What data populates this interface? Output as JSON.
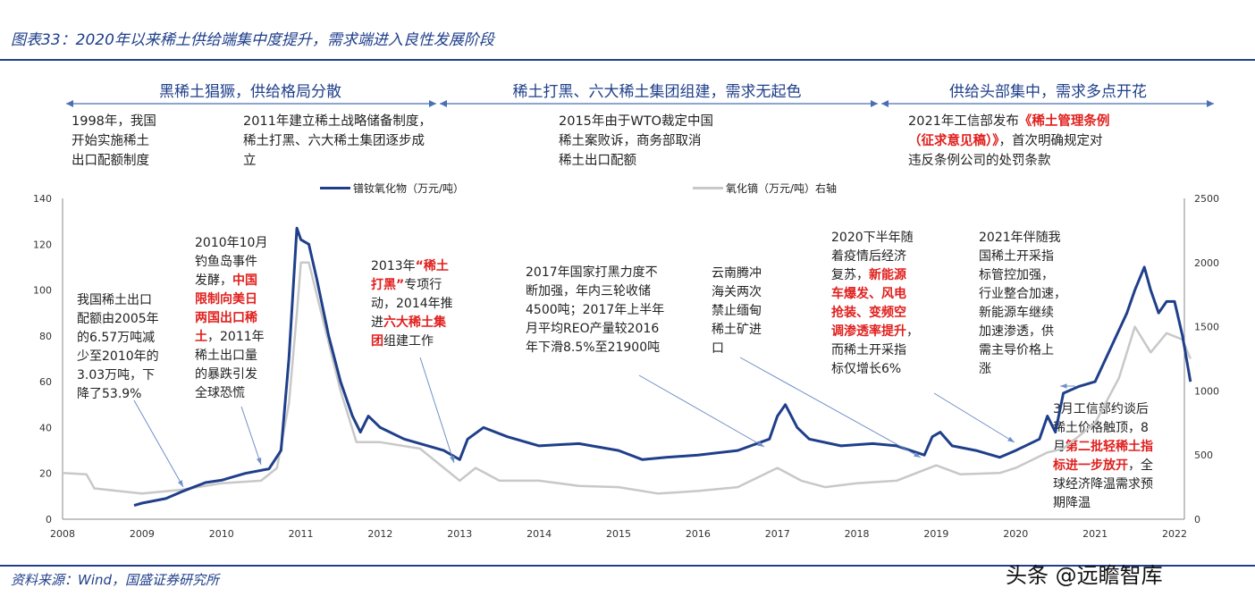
{
  "title": "图表33：2020年以来稀土供给端集中度提升，需求端进入良性发展阶段",
  "phases": [
    "黑稀土猖獗，供给格局分散",
    "稀土打黑、六大稀土集团组建，需求无起色",
    "供给头部集中，需求多点开花"
  ],
  "phase_notes": [
    [
      {
        "t": "1998年，我国\n开始实施稀土\n出口配额制度"
      }
    ],
    [
      {
        "t": "2011年建立稀土战略储备制度，\n稀土打黑、六大稀土集团逐步成\n立"
      }
    ],
    [
      {
        "t": "2015年由于WTO裁定中国\n稀土案败诉，商务部取消\n稀土出口配额"
      }
    ],
    [
      {
        "t": "2021年工信部发布"
      },
      {
        "t": "《稀土管理条例\n（征求意见稿）》",
        "red": true
      },
      {
        "t": "，首次明确规定对\n违反条例公司的处罚条款"
      }
    ]
  ],
  "annotations": [
    [
      {
        "t": "我国稀土出口\n配额由2005年\n的6.57万吨减\n少至2010年的\n3.03万吨，下\n降了53.9%"
      }
    ],
    [
      {
        "t": "2010年10月\n钓鱼岛事件\n发酵，"
      },
      {
        "t": "中国\n限制向美日\n两国出口稀\n土",
        "red": true
      },
      {
        "t": "，2011年\n稀土出口量\n的暴跌引发\n全球恐慌"
      }
    ],
    [
      {
        "t": "2013年"
      },
      {
        "t": "“稀土\n打黑”",
        "red": true
      },
      {
        "t": "专项行\n动，2014年推\n进"
      },
      {
        "t": "六大稀土集\n团",
        "red": true
      },
      {
        "t": "组建工作"
      }
    ],
    [
      {
        "t": "2017年国家打黑力度不\n断加强，年内三轮收储\n4500吨；2017年上半年\n月平均REO产量较2016\n年下滑8.5%至21900吨"
      }
    ],
    [
      {
        "t": "云南腾冲\n海关两次\n禁止缅甸\n稀土矿进\n口"
      }
    ],
    [
      {
        "t": "2020下半年随\n着疫情后经济\n复苏，"
      },
      {
        "t": "新能源\n车爆发、风电\n抢装、变频空\n调渗透率提升",
        "red": true
      },
      {
        "t": "，\n而稀土开采指\n标仅增长6%"
      }
    ],
    [
      {
        "t": "2021年伴随我\n国稀土开采指\n标管控加强，\n行业整合加速，\n新能源车继续\n加速渗透，供\n需主导价格上\n涨"
      }
    ],
    [
      {
        "t": "3月工信部约谈后\n稀土价格触顶，8\n月"
      },
      {
        "t": "第二批轻稀土指\n标进一步放开",
        "red": true
      },
      {
        "t": "，全\n球经济降温需求预\n期降温"
      }
    ]
  ],
  "source": "资料来源：Wind，国盛证券研究所",
  "watermark": "头条 @远瞻智库",
  "chart_data": {
    "type": "line",
    "x_ticks": [
      "2008",
      "2009",
      "2010",
      "2011",
      "2012",
      "2013",
      "2014",
      "2015",
      "2016",
      "2017",
      "2018",
      "2019",
      "2020",
      "2021",
      "2022"
    ],
    "ylim_left": [
      0,
      140
    ],
    "yticks_left": [
      "0",
      "20",
      "40",
      "60",
      "80",
      "100",
      "120",
      "140"
    ],
    "ylim_right": [
      0,
      2500
    ],
    "yticks_right": [
      "0",
      "500",
      "1000",
      "1500",
      "2000",
      "2500"
    ],
    "grid": false,
    "legend": "top",
    "series": [
      {
        "name": "镨钕氧化物（万元/吨）",
        "axis": "left",
        "color": "#1f3f8a",
        "x": [
          2008.9,
          2009.0,
          2009.3,
          2009.5,
          2009.8,
          2010.0,
          2010.3,
          2010.6,
          2010.75,
          2010.85,
          2010.95,
          2011.0,
          2011.1,
          2011.2,
          2011.35,
          2011.5,
          2011.65,
          2011.75,
          2011.85,
          2012.0,
          2012.3,
          2012.6,
          2012.8,
          2013.0,
          2013.1,
          2013.3,
          2013.6,
          2014.0,
          2014.5,
          2015.0,
          2015.3,
          2015.6,
          2016.0,
          2016.5,
          2016.9,
          2017.0,
          2017.1,
          2017.25,
          2017.4,
          2017.8,
          2018.2,
          2018.5,
          2018.85,
          2018.95,
          2019.05,
          2019.2,
          2019.5,
          2019.8,
          2020.0,
          2020.3,
          2020.4,
          2020.5,
          2020.6,
          2020.8,
          2021.0,
          2021.2,
          2021.4,
          2021.5,
          2021.62,
          2021.7,
          2021.8,
          2021.9,
          2022.0,
          2022.1,
          2022.2
        ],
        "y": [
          6,
          7,
          9,
          12,
          16,
          17,
          20,
          22,
          30,
          70,
          127,
          122,
          120,
          105,
          80,
          60,
          45,
          38,
          45,
          40,
          35,
          32,
          30,
          26,
          35,
          40,
          36,
          32,
          33,
          30,
          26,
          27,
          28,
          30,
          35,
          45,
          50,
          40,
          35,
          32,
          33,
          32,
          28,
          36,
          38,
          32,
          30,
          27,
          30,
          35,
          45,
          38,
          55,
          58,
          60,
          75,
          90,
          100,
          110,
          100,
          90,
          95,
          95,
          80,
          60
        ]
      },
      {
        "name": "氧化镝（万元/吨）右轴",
        "axis": "right",
        "color": "#c8c8c8",
        "x": [
          2008.0,
          2008.3,
          2008.4,
          2009.0,
          2009.5,
          2010.0,
          2010.5,
          2010.7,
          2010.85,
          2010.95,
          2011.0,
          2011.1,
          2011.3,
          2011.5,
          2011.7,
          2012.0,
          2012.5,
          2013.0,
          2013.2,
          2013.5,
          2014.0,
          2014.5,
          2015.0,
          2015.5,
          2016.0,
          2016.5,
          2017.0,
          2017.3,
          2017.6,
          2018.0,
          2018.5,
          2019.0,
          2019.3,
          2019.8,
          2020.0,
          2020.4,
          2020.6,
          2020.9,
          2021.0,
          2021.3,
          2021.5,
          2021.7,
          2021.9,
          2022.1,
          2022.2
        ],
        "y": [
          360,
          350,
          240,
          200,
          230,
          280,
          300,
          400,
          900,
          1600,
          2000,
          2000,
          1500,
          1000,
          600,
          600,
          550,
          300,
          400,
          300,
          300,
          260,
          250,
          200,
          220,
          250,
          400,
          300,
          250,
          280,
          300,
          420,
          350,
          360,
          400,
          520,
          550,
          700,
          750,
          1100,
          1500,
          1300,
          1450,
          1400,
          1250
        ]
      }
    ]
  }
}
